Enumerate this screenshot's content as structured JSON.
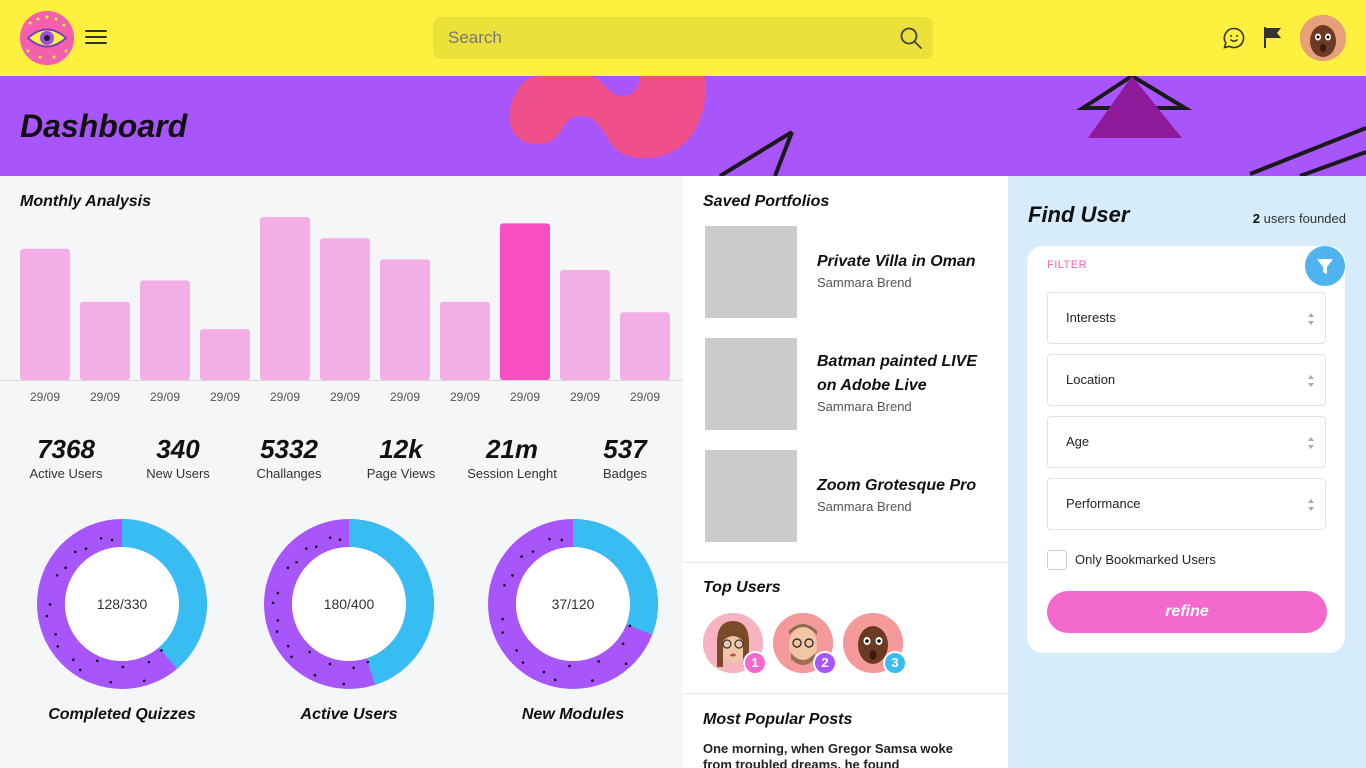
{
  "header": {
    "search_placeholder": "Search",
    "icons": [
      "eye-logo-icon",
      "menu-icon",
      "search-icon",
      "chat-icon",
      "flag-icon"
    ]
  },
  "hero": {
    "title": "Dashboard"
  },
  "monthly": {
    "title": "Monthly Analysis",
    "accent": "#f94fc3",
    "bar_color": "#f3aee5"
  },
  "chart_data": {
    "type": "bar",
    "categories": [
      "29/09",
      "29/09",
      "29/09",
      "29/09",
      "29/09",
      "29/09",
      "29/09",
      "29/09",
      "29/09",
      "29/09",
      "29/09"
    ],
    "values": [
      124,
      74,
      94,
      48,
      154,
      134,
      114,
      74,
      148,
      104,
      64
    ],
    "highlight_index": 8
  },
  "stats": [
    {
      "value": "7368",
      "label": "Active Users"
    },
    {
      "value": "340",
      "label": "New Users"
    },
    {
      "value": "5332",
      "label": "Challanges"
    },
    {
      "value": "12k",
      "label": "Page Views"
    },
    {
      "value": "21m",
      "label": "Session Lenght"
    },
    {
      "value": "537",
      "label": "Badges"
    }
  ],
  "donuts": [
    {
      "center": "128/330",
      "title": "Completed Quizzes",
      "done": 128,
      "total": 330
    },
    {
      "center": "180/400",
      "title": "Active Users",
      "done": 180,
      "total": 400
    },
    {
      "center": "37/120",
      "title": "New Modules",
      "done": 37,
      "total": 120
    }
  ],
  "colors": {
    "yellow": "#fdf03f",
    "purple": "#a855fc",
    "blue": "#38bdf2",
    "pink": "#f469cd"
  },
  "portfolios": {
    "title": "Saved Portfolios",
    "items": [
      {
        "title": "Private Villa in Oman",
        "author": "Sammara Brend"
      },
      {
        "title": "Batman painted LIVE on Adobe Live",
        "author": "Sammara Brend"
      },
      {
        "title": "Zoom Grotesque Pro",
        "author": "Sammara Brend"
      }
    ]
  },
  "top_users": {
    "title": "Top Users",
    "ranks": [
      "1",
      "2",
      "3"
    ]
  },
  "posts": {
    "title": "Most Popular Posts",
    "text": "One morning, when Gregor Samsa woke from troubled dreams, he found"
  },
  "find_user": {
    "title": "Find User",
    "count": "2",
    "count_suffix": "users founded",
    "filter_label": "FILTER",
    "selects": [
      "Interests",
      "Location",
      "Age",
      "Performance"
    ],
    "checkbox_label": "Only Bookmarked Users",
    "refine_label": "refine"
  }
}
